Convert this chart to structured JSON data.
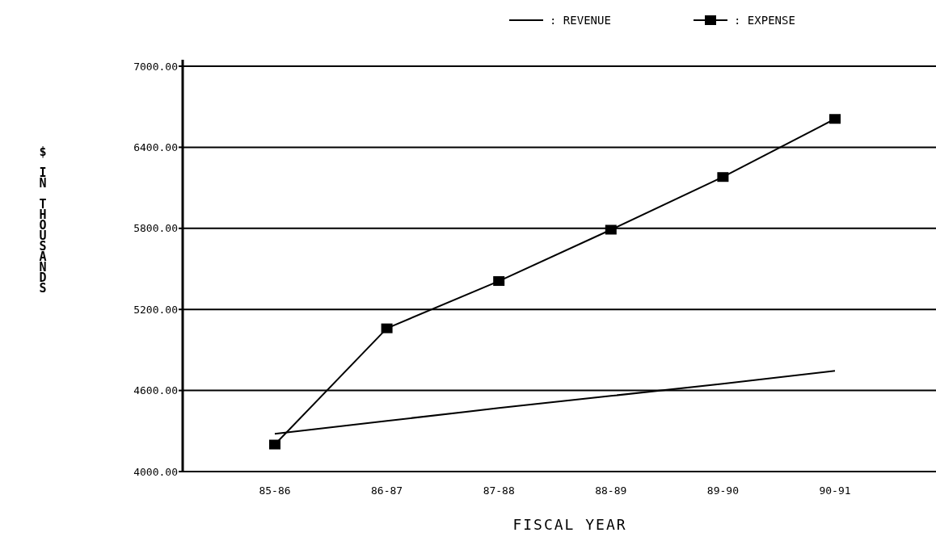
{
  "chart_data": {
    "type": "line",
    "xlabel": "FISCAL YEAR",
    "ylabel": "$ IN THOUSANDS",
    "categories": [
      "85-86",
      "86-87",
      "87-88",
      "88-89",
      "89-90",
      "90-91"
    ],
    "series": [
      {
        "name": ": REVENUE",
        "color": "#000000",
        "marker": "none",
        "values": [
          4280,
          4375,
          4470,
          4560,
          4650,
          4745
        ]
      },
      {
        "name": ": EXPENSE",
        "color": "#000000",
        "marker": "square",
        "values": [
          4200,
          5060,
          5410,
          5790,
          6180,
          6610
        ]
      }
    ],
    "ylim": [
      4000,
      7000
    ],
    "yticks": [
      {
        "value": 4000,
        "label": "4000.00"
      },
      {
        "value": 4600,
        "label": "4600.00"
      },
      {
        "value": 5200,
        "label": "5200.00"
      },
      {
        "value": 5800,
        "label": "5800.00"
      },
      {
        "value": 6400,
        "label": "6400.00"
      },
      {
        "value": 7000,
        "label": "7000.00"
      }
    ],
    "grid": "y",
    "legend": "top",
    "line_style": "solid"
  }
}
